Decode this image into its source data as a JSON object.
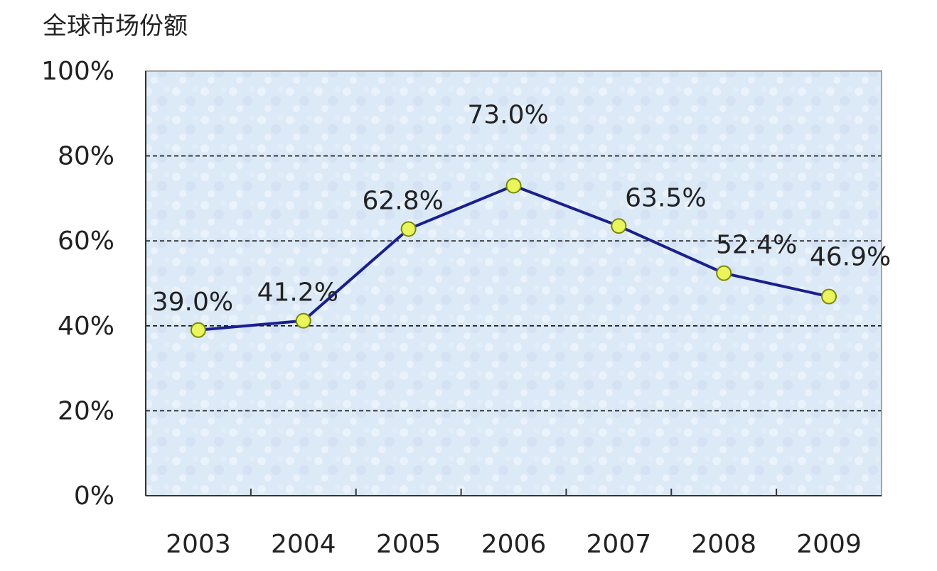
{
  "chart_data": {
    "type": "line",
    "title": "",
    "ylabel": "全球市场份额",
    "xlabel": "",
    "categories": [
      "2003",
      "2004",
      "2005",
      "2006",
      "2007",
      "2008",
      "2009"
    ],
    "series": [
      {
        "values": [
          39.0,
          41.2,
          62.8,
          73.0,
          63.5,
          52.4,
          46.9
        ],
        "labels": [
          "39.0%",
          "41.2%",
          "62.8%",
          "73.0%",
          "63.5%",
          "52.4%",
          "46.9%"
        ],
        "line_color": "#1a1f8f",
        "marker_fill": "#e9f55b",
        "marker_stroke": "#7a8a00"
      }
    ],
    "ylim": [
      0,
      100
    ],
    "y_ticks": [
      0,
      20,
      40,
      60,
      80,
      100
    ],
    "y_tick_labels": [
      "0%",
      "20%",
      "40%",
      "60%",
      "80%",
      "100%"
    ],
    "grid": true,
    "grid_style": "dashed",
    "legend": "none",
    "plot_background": "#dce9f7",
    "axis_color": "#333333"
  }
}
